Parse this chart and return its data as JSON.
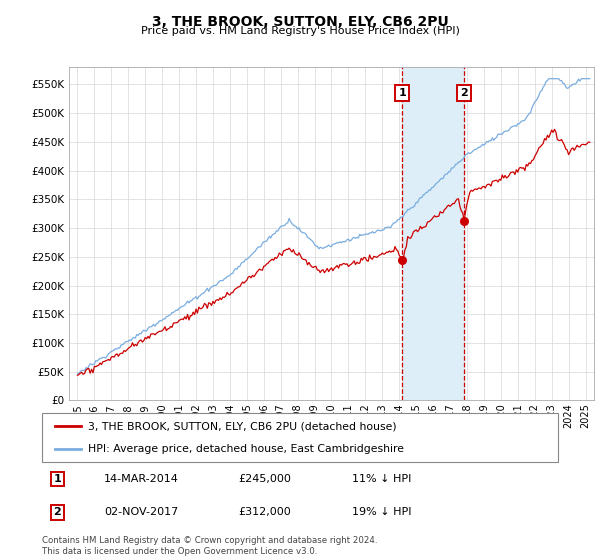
{
  "title": "3, THE BROOK, SUTTON, ELY, CB6 2PU",
  "subtitle": "Price paid vs. HM Land Registry's House Price Index (HPI)",
  "hpi_label": "HPI: Average price, detached house, East Cambridgeshire",
  "property_label": "3, THE BROOK, SUTTON, ELY, CB6 2PU (detached house)",
  "hpi_color": "#7aade0",
  "property_color": "#cc0000",
  "shaded_color": "#ddeef8",
  "marker1_date": 2014.18,
  "marker2_date": 2017.83,
  "marker1_price": 245000,
  "marker2_price": 312000,
  "marker1_label": "14-MAR-2014",
  "marker2_label": "02-NOV-2017",
  "marker1_pct": "11% ↓ HPI",
  "marker2_pct": "19% ↓ HPI",
  "ylim_min": 0,
  "ylim_max": 580000,
  "xlim_min": 1994.5,
  "xlim_max": 2025.5,
  "footnote": "Contains HM Land Registry data © Crown copyright and database right 2024.\nThis data is licensed under the Open Government Licence v3.0.",
  "yticks": [
    0,
    50000,
    100000,
    150000,
    200000,
    250000,
    300000,
    350000,
    400000,
    450000,
    500000,
    550000
  ],
  "xticks": [
    1995,
    1996,
    1997,
    1998,
    1999,
    2000,
    2001,
    2002,
    2003,
    2004,
    2005,
    2006,
    2007,
    2008,
    2009,
    2010,
    2011,
    2012,
    2013,
    2014,
    2015,
    2016,
    2017,
    2018,
    2019,
    2020,
    2021,
    2022,
    2023,
    2024,
    2025
  ],
  "fig_width": 6.0,
  "fig_height": 5.6
}
